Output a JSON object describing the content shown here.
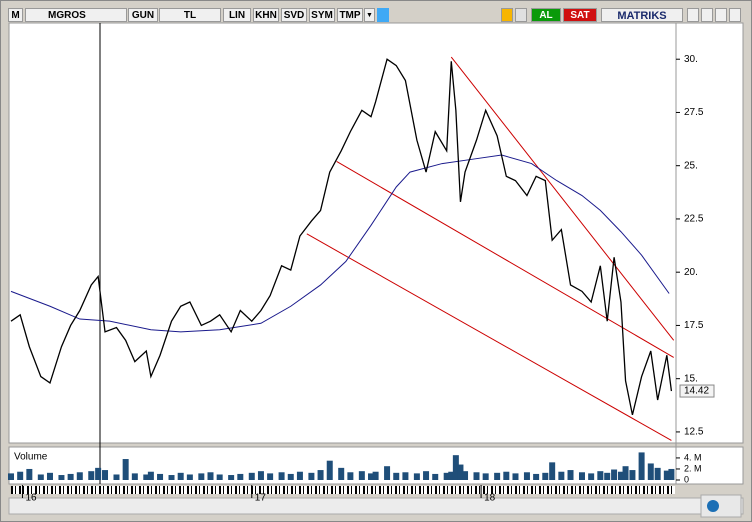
{
  "toolbar": {
    "menu": "M",
    "symbol": "MGROS",
    "period": "GUN",
    "currency": "TL",
    "buttons": [
      "LIN",
      "KHN",
      "SVD",
      "SYM",
      "TMP"
    ],
    "buy": "AL",
    "sell": "SAT",
    "brand": "MATRIKS"
  },
  "chart_data": {
    "type": "stock",
    "x": [
      2015.95,
      2015.99,
      2016.03,
      2016.08,
      2016.12,
      2016.17,
      2016.21,
      2016.25,
      2016.3,
      2016.33,
      2016.36,
      2016.41,
      2016.45,
      2016.49,
      2016.54,
      2016.56,
      2016.6,
      2016.65,
      2016.69,
      2016.73,
      2016.78,
      2016.82,
      2016.86,
      2016.91,
      2016.95,
      2017.0,
      2017.04,
      2017.08,
      2017.13,
      2017.17,
      2017.21,
      2017.26,
      2017.3,
      2017.34,
      2017.39,
      2017.43,
      2017.48,
      2017.52,
      2017.54,
      2017.59,
      2017.63,
      2017.67,
      2017.72,
      2017.76,
      2017.8,
      2017.85,
      2017.87,
      2017.89,
      2017.91,
      2017.93,
      2017.98,
      2018.02,
      2018.07,
      2018.11,
      2018.15,
      2018.2,
      2018.24,
      2018.28,
      2018.31,
      2018.35,
      2018.39,
      2018.44,
      2018.48,
      2018.52,
      2018.55,
      2018.58,
      2018.61,
      2018.63,
      2018.66,
      2018.7,
      2018.74,
      2018.77,
      2018.81,
      2018.83
    ],
    "price": {
      "color": "#000000",
      "values": [
        17.7,
        18.0,
        16.5,
        15.1,
        14.8,
        16.5,
        17.5,
        18.2,
        19.4,
        19.8,
        17.2,
        17.4,
        16.8,
        15.8,
        16.3,
        15.1,
        16.1,
        17.7,
        18.4,
        18.6,
        17.5,
        17.7,
        18.0,
        17.2,
        18.2,
        17.7,
        18.2,
        18.9,
        20.3,
        20.1,
        21.7,
        22.4,
        22.9,
        24.7,
        25.7,
        26.6,
        27.6,
        27.3,
        28.0,
        30.0,
        29.7,
        29.0,
        26.2,
        24.7,
        26.6,
        25.7,
        29.9,
        27.6,
        23.3,
        24.7,
        26.2,
        27.6,
        26.4,
        24.5,
        24.3,
        23.6,
        24.5,
        24.3,
        21.5,
        22.0,
        19.4,
        19.1,
        18.6,
        20.3,
        17.7,
        20.7,
        18.6,
        14.9,
        13.3,
        15.1,
        16.3,
        14.0,
        16.1,
        14.42
      ]
    },
    "moving_average": {
      "color": "#1a1a8c",
      "x": [
        2015.95,
        2016.12,
        2016.25,
        2016.38,
        2016.56,
        2016.69,
        2016.86,
        2017.04,
        2017.17,
        2017.3,
        2017.41,
        2017.52,
        2017.63,
        2017.69,
        2017.83,
        2017.96,
        2018.09,
        2018.22,
        2018.33,
        2018.44,
        2018.52,
        2018.61,
        2018.7,
        2018.82
      ],
      "values": [
        19.1,
        18.4,
        17.8,
        17.7,
        17.3,
        17.2,
        17.3,
        17.6,
        18.4,
        19.4,
        20.5,
        22.2,
        24.0,
        24.7,
        25.1,
        25.3,
        25.5,
        25.1,
        24.3,
        23.6,
        22.9,
        21.9,
        20.8,
        19.0
      ]
    },
    "trend_lines": [
      {
        "color": "#cc0000",
        "x": [
          2017.37,
          2018.84
        ],
        "y": [
          25.2,
          16.0
        ]
      },
      {
        "color": "#cc0000",
        "x": [
          2017.24,
          2018.83
        ],
        "y": [
          21.8,
          12.1
        ]
      },
      {
        "color": "#cc0000",
        "x": [
          2017.87,
          2018.84
        ],
        "y": [
          30.1,
          16.8
        ]
      }
    ],
    "last_price": 14.42,
    "xlim": [
      2015.95,
      2018.85
    ],
    "ylim": [
      11.98,
      31.7
    ],
    "yticks": [
      12.5,
      {
        "value": 15,
        "label": "15."
      },
      17.5,
      {
        "value": 20,
        "label": "20."
      },
      22.5,
      {
        "value": 25,
        "label": "25."
      },
      27.5,
      {
        "value": 30,
        "label": "30."
      }
    ],
    "volume": {
      "title": "Volume",
      "color": "#1f4e79",
      "ylim": [
        0,
        5.8
      ],
      "yticks": [
        {
          "value": 4,
          "label": "4. M"
        },
        {
          "value": 2,
          "label": "2. M"
        },
        0
      ],
      "xticks": [
        {
          "value": 2016,
          "label": "16"
        },
        {
          "value": 2017,
          "label": "17"
        },
        {
          "value": 2018,
          "label": "18"
        }
      ],
      "values": [
        1.2,
        1.5,
        2.0,
        1.0,
        1.3,
        0.9,
        1.1,
        1.4,
        1.6,
        2.2,
        1.8,
        1.0,
        3.8,
        1.2,
        1.0,
        1.5,
        1.1,
        0.9,
        1.3,
        1.0,
        1.2,
        1.4,
        1.0,
        0.9,
        1.1,
        1.3,
        1.6,
        1.2,
        1.4,
        1.1,
        1.5,
        1.3,
        1.8,
        3.5,
        2.2,
        1.4,
        1.6,
        1.2,
        1.5,
        2.5,
        1.3,
        1.4,
        1.2,
        1.6,
        1.1,
        1.3,
        1.5,
        4.5,
        2.8,
        1.6,
        1.4,
        1.2,
        1.3,
        1.5,
        1.2,
        1.4,
        1.1,
        1.3,
        3.2,
        1.5,
        1.8,
        1.4,
        1.2,
        1.6,
        1.3,
        1.9,
        1.5,
        2.5,
        1.8,
        5.0,
        3.0,
        2.2,
        1.7,
        2.0
      ]
    }
  }
}
